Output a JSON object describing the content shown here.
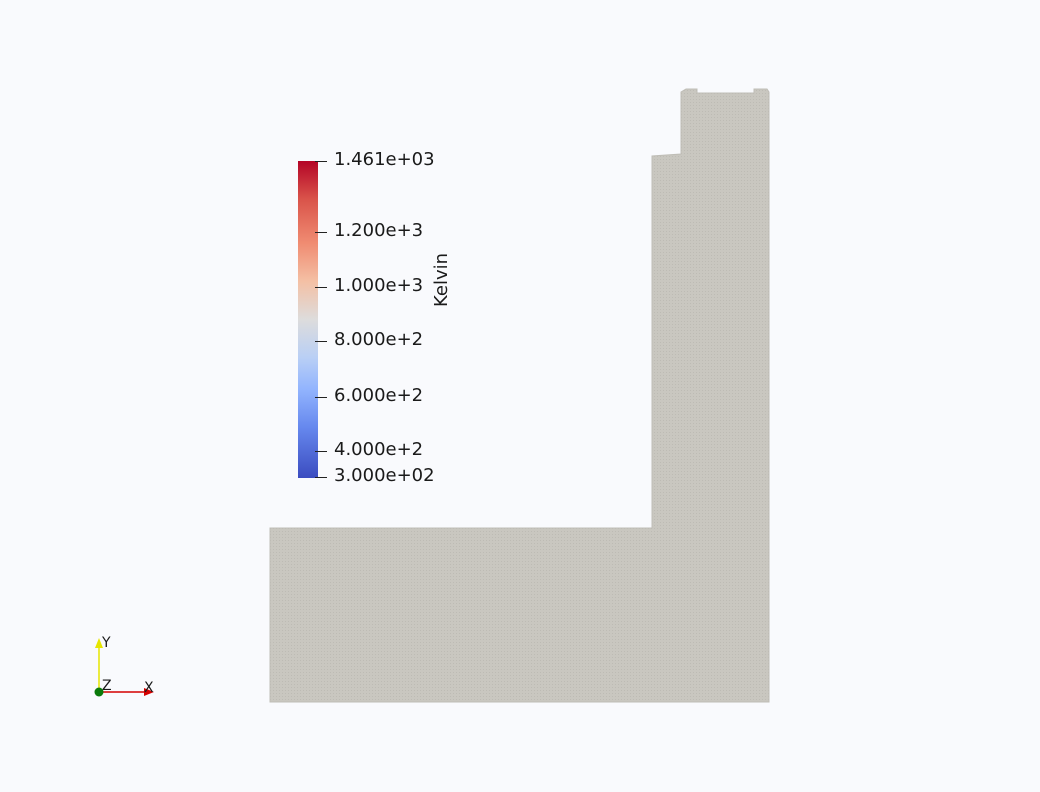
{
  "colorbar": {
    "title": "Kelvin",
    "labels": [
      "1.461e+03",
      "1.200e+3",
      "1.000e+3",
      "8.000e+2",
      "6.000e+2",
      "4.000e+2",
      "3.000e+02"
    ],
    "colors": {
      "max": "#b40426",
      "mid": "#dddcdc",
      "min": "#3b4cc0"
    }
  },
  "axes": {
    "x_label": "X",
    "y_label": "Y",
    "z_label": "Z",
    "colors": {
      "x": "#d40000",
      "y": "#e6e600",
      "z": "#0b7a0b"
    }
  },
  "geometry": {
    "fill_color": "#c8c6bf"
  }
}
